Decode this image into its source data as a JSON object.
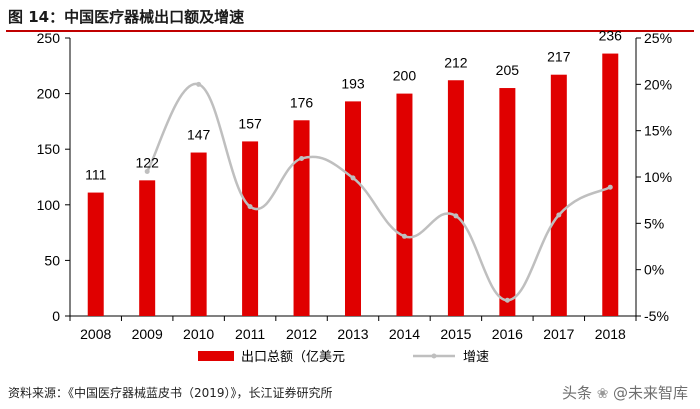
{
  "header": {
    "title": "图 14：中国医疗器械出口额及增速"
  },
  "footer": {
    "source": "资料来源：《中国医疗器械蓝皮书（2019）》，长江证券研究所",
    "watermark_prefix": "头条",
    "watermark_brand": "@未来智库"
  },
  "chart_data": {
    "type": "bar",
    "title": "中国医疗器械出口额及增速",
    "categories": [
      "2008",
      "2009",
      "2010",
      "2011",
      "2012",
      "2013",
      "2014",
      "2015",
      "2016",
      "2017",
      "2018"
    ],
    "series": [
      {
        "name": "出口总额（亿美元）",
        "type": "bar",
        "axis": "left",
        "color": "#e00000",
        "values": [
          111,
          122,
          147,
          157,
          176,
          193,
          200,
          212,
          205,
          217,
          236
        ],
        "labels": [
          "111",
          "122",
          "147",
          "157",
          "176",
          "193",
          "200",
          "212",
          "205",
          "217",
          "236"
        ]
      },
      {
        "name": "增速",
        "type": "line",
        "axis": "right",
        "color": "#bfbfbf",
        "smooth": true,
        "values": [
          null,
          10.6,
          20.0,
          6.8,
          12.0,
          9.9,
          3.6,
          5.8,
          -3.3,
          5.9,
          8.9
        ]
      }
    ],
    "y_left": {
      "min": 0,
      "max": 250,
      "ticks": [
        0,
        50,
        100,
        150,
        200,
        250
      ],
      "tick_labels": [
        "0",
        "50",
        "100",
        "150",
        "200",
        "250"
      ]
    },
    "y_right": {
      "min": -5,
      "max": 25,
      "ticks": [
        -5,
        0,
        5,
        10,
        15,
        20,
        25
      ],
      "tick_labels": [
        "-5%",
        "0%",
        "5%",
        "10%",
        "15%",
        "20%",
        "25%"
      ]
    },
    "legend": {
      "position": "bottom-center",
      "items": [
        "出口总额（亿美元",
        "增速"
      ]
    }
  }
}
